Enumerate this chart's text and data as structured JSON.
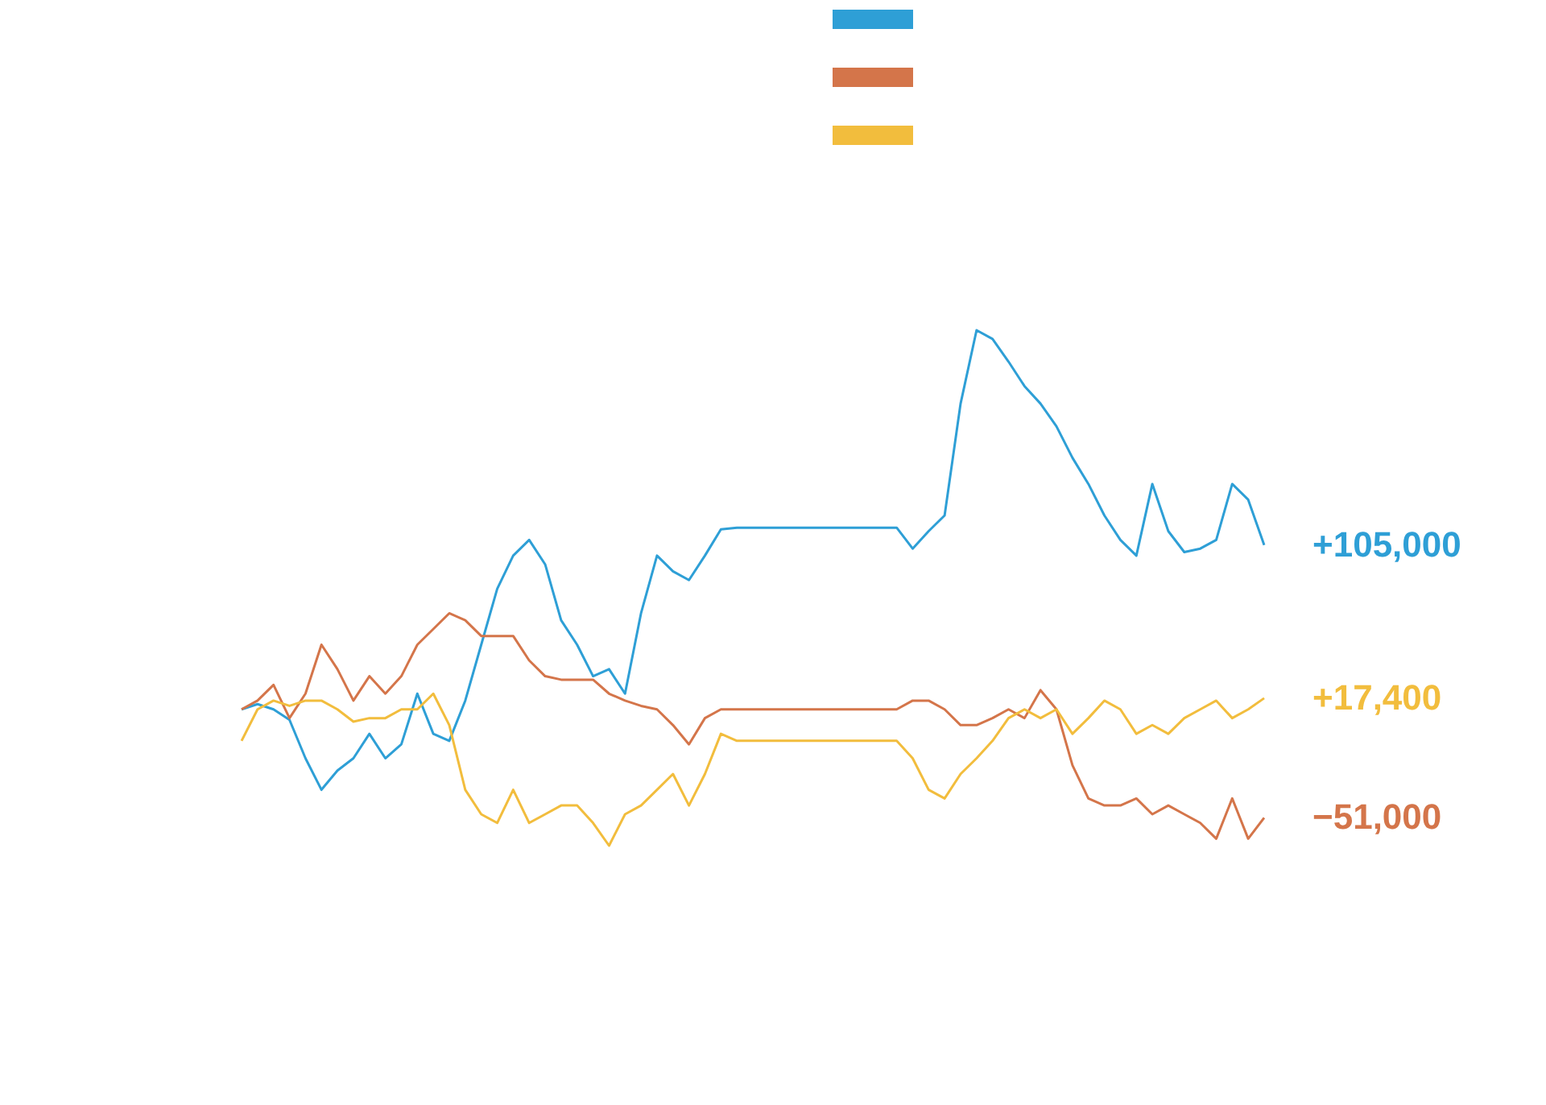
{
  "chart_data": {
    "type": "line",
    "categories": [
      null,
      null,
      null,
      null,
      null,
      null,
      null,
      null,
      null,
      null,
      null,
      null,
      null,
      null,
      null,
      null,
      null,
      null,
      null,
      null,
      null,
      null,
      null,
      null,
      null,
      null,
      null,
      null,
      null,
      null,
      null,
      null,
      null,
      null,
      null,
      null,
      null,
      null,
      null,
      null,
      null,
      null,
      null,
      null,
      null,
      null,
      null,
      null,
      null,
      null,
      null,
      null,
      null,
      null,
      null,
      null,
      null,
      null,
      null,
      null,
      null,
      null,
      null,
      null,
      null
    ],
    "tick_labels": false,
    "line_style": "solid",
    "marker": "none",
    "series": [
      {
        "color": "#2e9fd6",
        "values": [
          11000,
          14000,
          11000,
          5000,
          -17000,
          -35000,
          -24000,
          -17000,
          -3000,
          -17000,
          -9000,
          20000,
          -3000,
          -7000,
          16000,
          48000,
          80000,
          99000,
          108000,
          94000,
          62000,
          48000,
          30000,
          34000,
          20000,
          66000,
          99000,
          90000,
          85000,
          99000,
          114000,
          115000,
          115000,
          115000,
          115000,
          115000,
          115000,
          115000,
          115000,
          115000,
          115000,
          115000,
          103000,
          113000,
          122000,
          186000,
          228000,
          223000,
          210000,
          196000,
          186000,
          173000,
          155000,
          140000,
          122000,
          108000,
          99000,
          140000,
          113000,
          101000,
          103000,
          108000,
          140000,
          131000,
          105000
        ],
        "value_labels": [
          null,
          null,
          null,
          null,
          null,
          null,
          null,
          null,
          null,
          null,
          null,
          null,
          null,
          null,
          null,
          null,
          null,
          null,
          null,
          null,
          null,
          null,
          null,
          null,
          null,
          null,
          null,
          null,
          null,
          null,
          null,
          null,
          null,
          null,
          null,
          null,
          null,
          null,
          null,
          null,
          null,
          null,
          null,
          null,
          null,
          null,
          null,
          null,
          null,
          null,
          null,
          null,
          null,
          null,
          null,
          null,
          null,
          null,
          null,
          null,
          null,
          null,
          null,
          null,
          "+105,000"
        ]
      },
      {
        "color": "#d4754a",
        "values": [
          11000,
          16000,
          25000,
          6000,
          20000,
          48000,
          34000,
          16000,
          30000,
          20000,
          30000,
          48000,
          57000,
          66000,
          62000,
          53000,
          53000,
          53000,
          39000,
          30000,
          28000,
          28000,
          28000,
          20000,
          16000,
          13000,
          11000,
          2000,
          -9000,
          6000,
          11000,
          11000,
          11000,
          11000,
          11000,
          11000,
          11000,
          11000,
          11000,
          11000,
          11000,
          11000,
          16000,
          16000,
          11000,
          2000,
          2000,
          6000,
          11000,
          6000,
          22000,
          11000,
          -21000,
          -40000,
          -44000,
          -44000,
          -40000,
          -49000,
          -44000,
          -49000,
          -54000,
          -63000,
          -40000,
          -63000,
          -51000
        ],
        "value_labels": [
          null,
          null,
          null,
          null,
          null,
          null,
          null,
          null,
          null,
          null,
          null,
          null,
          null,
          null,
          null,
          null,
          null,
          null,
          null,
          null,
          null,
          null,
          null,
          null,
          null,
          null,
          null,
          null,
          null,
          null,
          null,
          null,
          null,
          null,
          null,
          null,
          null,
          null,
          null,
          null,
          null,
          null,
          null,
          null,
          null,
          null,
          null,
          null,
          null,
          null,
          null,
          null,
          null,
          null,
          null,
          null,
          null,
          null,
          null,
          null,
          null,
          null,
          null,
          null,
          "−51,000"
        ]
      },
      {
        "color": "#f2bd3d",
        "values": [
          -7000,
          11000,
          16000,
          13000,
          16000,
          16000,
          11000,
          4000,
          6000,
          6000,
          11000,
          11000,
          20000,
          2000,
          -35000,
          -49000,
          -54000,
          -35000,
          -54000,
          -49000,
          -44000,
          -44000,
          -54000,
          -67000,
          -49000,
          -44000,
          -35000,
          -26000,
          -44000,
          -26000,
          -3000,
          -7000,
          -7000,
          -7000,
          -7000,
          -7000,
          -7000,
          -7000,
          -7000,
          -7000,
          -7000,
          -7000,
          -17000,
          -35000,
          -40000,
          -26000,
          -17000,
          -7000,
          6000,
          11000,
          6000,
          11000,
          -3000,
          6000,
          16000,
          11000,
          -3000,
          2000,
          -3000,
          6000,
          11000,
          16000,
          6000,
          11000,
          17400
        ],
        "value_labels": [
          null,
          null,
          null,
          null,
          null,
          null,
          null,
          null,
          null,
          null,
          null,
          null,
          null,
          null,
          null,
          null,
          null,
          null,
          null,
          null,
          null,
          null,
          null,
          null,
          null,
          null,
          null,
          null,
          null,
          null,
          null,
          null,
          null,
          null,
          null,
          null,
          null,
          null,
          null,
          null,
          null,
          null,
          null,
          null,
          null,
          null,
          null,
          null,
          null,
          null,
          null,
          null,
          null,
          null,
          null,
          null,
          null,
          null,
          null,
          null,
          null,
          null,
          null,
          null,
          "+17,400"
        ]
      }
    ]
  }
}
